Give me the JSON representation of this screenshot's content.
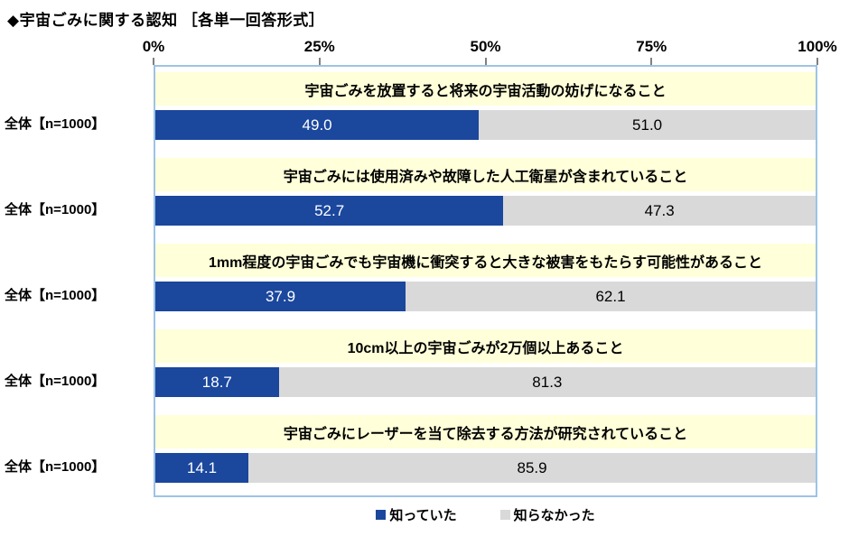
{
  "page": {
    "title": "◆宇宙ごみに関する認知 ［各単一回答形式］"
  },
  "chart_data": {
    "type": "bar",
    "orientation": "horizontal",
    "stacked": true,
    "title": "宇宙ごみに関する認知（各単一回答形式）",
    "x_axis": {
      "ticks": [
        "0%",
        "25%",
        "50%",
        "75%",
        "100%"
      ],
      "range": [
        0,
        100
      ],
      "grid": false
    },
    "series_names": [
      "知っていた",
      "知らなかった"
    ],
    "groups": [
      {
        "question": "宇宙ごみを放置すると将来の宇宙活動の妨げになること",
        "row_label": "全体【n=1000】",
        "values": [
          49.0,
          51.0
        ]
      },
      {
        "question": "宇宙ごみには使用済みや故障した人工衛星が含まれていること",
        "row_label": "全体【n=1000】",
        "values": [
          52.7,
          47.3
        ]
      },
      {
        "question": "1mm程度の宇宙ごみでも宇宙機に衝突すると大きな被害をもたらす可能性があること",
        "row_label": "全体【n=1000】",
        "values": [
          37.9,
          62.1
        ]
      },
      {
        "question": "10cm以上の宇宙ごみが2万個以上あること",
        "row_label": "全体【n=1000】",
        "values": [
          18.7,
          81.3
        ]
      },
      {
        "question": "宇宙ごみにレーザーを当て除去する方法が研究されていること",
        "row_label": "全体【n=1000】",
        "values": [
          14.1,
          85.9
        ]
      }
    ],
    "legend": [
      {
        "label": "知っていた",
        "color": "#1B479D"
      },
      {
        "label": "知らなかった",
        "color": "#D9D9D9"
      }
    ],
    "legend_position": "bottom",
    "colors": {
      "knew": "#1B479D",
      "did_not_know": "#D9D9D9",
      "banner_bg": "#FFFFD9",
      "plot_border": "#9DC3E6",
      "value_text_on_blue": "#FFFFFF",
      "value_text_on_gray": "#000000"
    }
  }
}
